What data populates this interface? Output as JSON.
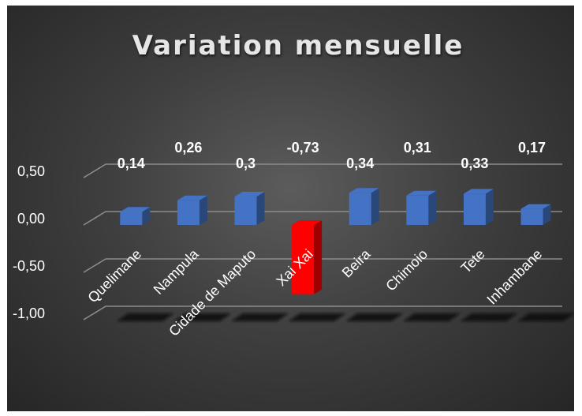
{
  "chart_data": {
    "type": "bar",
    "title": "Variation mensuelle",
    "categories": [
      "Quelimane",
      "Nampula",
      "Cidade de Maputo",
      "Xai Xai",
      "Beira",
      "Chimoio",
      "Tete",
      "Inhambane"
    ],
    "values": [
      0.14,
      0.26,
      0.3,
      -0.73,
      0.34,
      0.31,
      0.33,
      0.17
    ],
    "data_labels": [
      "0,14",
      "0,26",
      "0,3",
      "-0,73",
      "0,34",
      "0,31",
      "0,33",
      "0,17"
    ],
    "y_tick_labels": [
      "0,50",
      "0,00",
      "-0,50",
      "-1,00"
    ],
    "y_tick_values": [
      0.5,
      0.0,
      -0.5,
      -1.0
    ],
    "ylim": [
      -1.0,
      0.5
    ],
    "xlabel": "",
    "ylabel": "",
    "grid": true,
    "three_d": true,
    "colors": {
      "positive_bar": "#4472c4",
      "negative_bar": "#ff0000",
      "gridline": "#8c8c8c"
    }
  }
}
